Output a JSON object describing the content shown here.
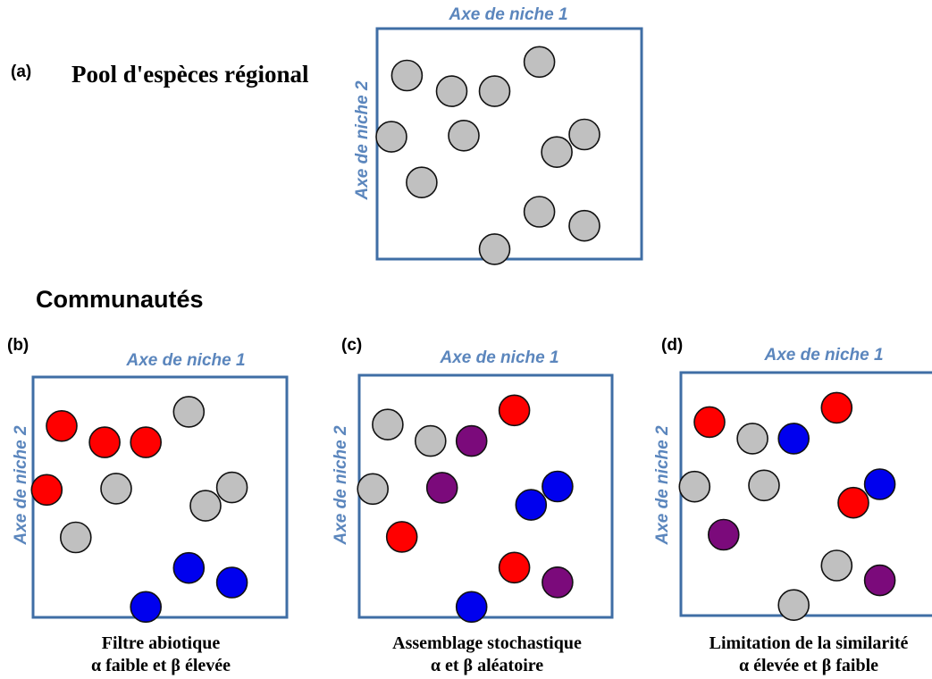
{
  "colors": {
    "frame": "#3f6ea5",
    "axis_text": "#5b86bd",
    "gray": "#c0c0c0",
    "red": "#ff0000",
    "blue": "#0000ee",
    "purple": "#7b0a7b",
    "outline": "#111111"
  },
  "regional": {
    "tag": "(a)",
    "title": "Pool d'espèces régional",
    "axis_x": "Axe de niche 1",
    "axis_y": "Axe de niche 2"
  },
  "communities_heading": "Communautés",
  "panels": [
    {
      "tag": "(b)",
      "axis_x": "Axe de niche 1",
      "axis_y": "Axe de niche 2",
      "caption_line1": "Filtre abiotique",
      "caption_line2": "α faible et β élevée",
      "colors": [
        "red",
        "red",
        "red",
        "gray",
        "red",
        "gray",
        "gray",
        "gray",
        "gray",
        "blue",
        "blue",
        "blue"
      ]
    },
    {
      "tag": "(c)",
      "axis_x": "Axe de niche 1",
      "axis_y": "Axe de niche 2",
      "caption_line1": "Assemblage stochastique",
      "caption_line2": "α et β aléatoire",
      "colors": [
        "gray",
        "gray",
        "purple",
        "red",
        "gray",
        "purple",
        "blue",
        "blue",
        "red",
        "red",
        "purple",
        "blue"
      ]
    },
    {
      "tag": "(d)",
      "axis_x": "Axe de niche 1",
      "axis_y": "Axe de niche 2",
      "caption_line1": "Limitation de la similarité",
      "caption_line2": "α élevée et β faible",
      "colors": [
        "red",
        "gray",
        "blue",
        "red",
        "gray",
        "gray",
        "red",
        "blue",
        "purple",
        "gray",
        "purple",
        "gray"
      ]
    }
  ]
}
